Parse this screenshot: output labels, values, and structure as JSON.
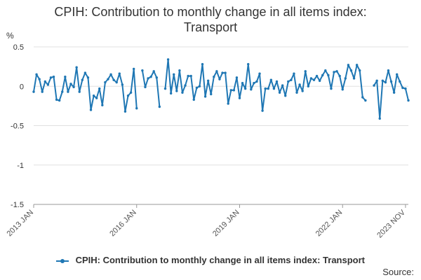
{
  "chart_data": {
    "type": "line",
    "title": "CPIH: Contribution to monthly change in all items index:\nTransport",
    "ylabel": "%",
    "ylim": [
      -1.5,
      0.5
    ],
    "yticks": [
      0.5,
      0,
      -0.5,
      -1,
      -1.5
    ],
    "ytick_labels": [
      "0.5",
      "0",
      "-0.5",
      "-1",
      "-1.5"
    ],
    "xticks": [
      "2013 JAN",
      "2016 JAN",
      "2019 JAN",
      "2022 JAN",
      "2023 NOV"
    ],
    "xtick_positions": [
      0,
      36,
      72,
      108,
      130
    ],
    "x_start": "2013 JAN",
    "x_end": "2023 NOV",
    "grid": true,
    "legend_position": "bottom",
    "series": [
      {
        "name": "CPIH: Contribution to monthly change in all items index: Transport",
        "color": "#1f77b4",
        "values": [
          -0.07,
          0.15,
          0.09,
          -0.07,
          0.06,
          0.02,
          0.11,
          0.12,
          -0.17,
          -0.18,
          -0.07,
          0.12,
          -0.07,
          0.03,
          -0.01,
          0.24,
          -0.07,
          0.08,
          0.17,
          0.11,
          -0.3,
          -0.12,
          -0.15,
          -0.03,
          -0.24,
          0.05,
          0.09,
          0.15,
          0.08,
          0.05,
          0.16,
          0.02,
          -0.32,
          -0.12,
          -0.08,
          0.22,
          -0.28,
          null,
          0.2,
          -0.01,
          0.1,
          0.12,
          0.19,
          0.11,
          -0.26,
          null,
          -0.03,
          0.34,
          -0.09,
          0.15,
          -0.06,
          0.2,
          -0.08,
          0.01,
          0.13,
          0.13,
          -0.17,
          -0.02,
          0.0,
          0.28,
          -0.13,
          0.07,
          -0.1,
          0.12,
          0.19,
          0.09,
          0.17,
          0.17,
          -0.22,
          -0.05,
          -0.05,
          0.11,
          -0.15,
          0.04,
          -0.03,
          0.28,
          -0.04,
          0.04,
          0.06,
          0.16,
          -0.31,
          -0.03,
          -0.03,
          0.08,
          -0.03,
          0.06,
          -0.08,
          0.01,
          -0.12,
          0.06,
          0.08,
          0.16,
          -0.08,
          0.02,
          -0.06,
          0.19,
          0.0,
          0.1,
          0.08,
          0.13,
          0.07,
          0.14,
          0.2,
          0.14,
          -0.03,
          0.18,
          0.19,
          0.13,
          -0.04,
          0.1,
          0.27,
          0.2,
          0.1,
          0.27,
          0.2,
          -0.14,
          -0.18,
          null,
          null,
          0.01,
          0.07,
          -0.41,
          0.07,
          0.05,
          0.2,
          0.06,
          -0.08,
          0.15,
          0.06,
          -0.02,
          -0.03,
          -0.18
        ]
      }
    ]
  },
  "source_label": "Source:"
}
